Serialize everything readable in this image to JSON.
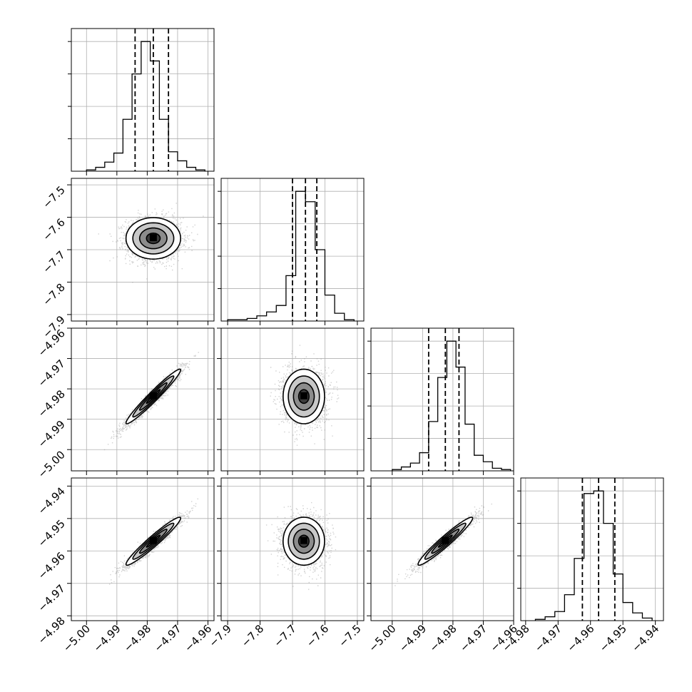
{
  "chart_data": {
    "type": "corner",
    "parameters": 4,
    "axes": {
      "p0": {
        "range": [
          -5.005,
          -4.958
        ],
        "ticks": [
          -5.0,
          -4.99,
          -4.98,
          -4.97,
          -4.96
        ],
        "tick_labels": [
          "−5.00",
          "−4.99",
          "−4.98",
          "−4.97",
          "−4.96"
        ]
      },
      "p1": {
        "range": [
          -7.92,
          -7.48
        ],
        "ticks": [
          -7.9,
          -7.8,
          -7.7,
          -7.6,
          -7.5
        ],
        "tick_labels": [
          "−7.9",
          "−7.8",
          "−7.7",
          "−7.6",
          "−7.5"
        ]
      },
      "p2": {
        "range": [
          -5.007,
          -4.96
        ],
        "ticks": [
          -5.0,
          -4.99,
          -4.98,
          -4.97,
          -4.96
        ],
        "tick_labels": [
          "−5.00",
          "−4.99",
          "−4.98",
          "−4.97",
          "−4.96"
        ]
      },
      "p3": {
        "range": [
          -4.9815,
          -4.9375
        ],
        "ticks": [
          -4.98,
          -4.97,
          -4.96,
          -4.95,
          -4.94
        ],
        "tick_labels": [
          "−4.98",
          "−4.97",
          "−4.96",
          "−4.95",
          "−4.94"
        ]
      }
    },
    "marginals": [
      {
        "param": 0,
        "bins": [
          -5.0,
          -4.997,
          -4.994,
          -4.991,
          -4.988,
          -4.985,
          -4.982,
          -4.979,
          -4.976,
          -4.973,
          -4.97,
          -4.967,
          -4.964,
          -4.961
        ],
        "counts": [
          1,
          3,
          7,
          14,
          40,
          75,
          100,
          85,
          40,
          15,
          8,
          3,
          1
        ],
        "quantiles": [
          -4.984,
          -4.978,
          -4.973
        ]
      },
      {
        "param": 1,
        "bins": [
          -7.9,
          -7.87,
          -7.84,
          -7.81,
          -7.78,
          -7.75,
          -7.72,
          -7.69,
          -7.66,
          -7.63,
          -7.6,
          -7.57,
          -7.54,
          -7.51
        ],
        "counts": [
          1,
          1,
          2,
          4,
          7,
          12,
          35,
          100,
          92,
          55,
          20,
          6,
          1
        ],
        "quantiles": [
          -7.7,
          -7.66,
          -7.625
        ]
      },
      {
        "param": 2,
        "bins": [
          -5.0,
          -4.997,
          -4.994,
          -4.991,
          -4.988,
          -4.985,
          -4.982,
          -4.979,
          -4.976,
          -4.973,
          -4.97,
          -4.967,
          -4.964,
          -4.961
        ],
        "counts": [
          1,
          3,
          6,
          14,
          38,
          72,
          100,
          80,
          36,
          12,
          7,
          2,
          1
        ],
        "quantiles": [
          -4.988,
          -4.9825,
          -4.978
        ]
      },
      {
        "param": 3,
        "bins": [
          -4.977,
          -4.974,
          -4.971,
          -4.968,
          -4.965,
          -4.962,
          -4.959,
          -4.956,
          -4.953,
          -4.95,
          -4.947,
          -4.944,
          -4.941
        ],
        "counts": [
          1,
          3,
          7,
          20,
          48,
          98,
          100,
          75,
          36,
          14,
          6,
          2
        ],
        "quantiles": [
          -4.9625,
          -4.9575,
          -4.9525
        ]
      }
    ],
    "joint": [
      {
        "x_param": 0,
        "y_param": 1,
        "center": [
          -4.978,
          -7.665
        ],
        "sigma": [
          0.0045,
          0.032
        ],
        "corr": 0.0
      },
      {
        "x_param": 0,
        "y_param": 2,
        "center": [
          -4.978,
          -4.9825
        ],
        "sigma": [
          0.0045,
          0.0045
        ],
        "corr": 0.97
      },
      {
        "x_param": 1,
        "y_param": 2,
        "center": [
          -7.665,
          -4.9825
        ],
        "sigma": [
          0.032,
          0.0045
        ],
        "corr": 0.0
      },
      {
        "x_param": 0,
        "y_param": 3,
        "center": [
          -4.978,
          -4.957
        ],
        "sigma": [
          0.0045,
          0.0037
        ],
        "corr": 0.96
      },
      {
        "x_param": 1,
        "y_param": 3,
        "center": [
          -7.665,
          -4.957
        ],
        "sigma": [
          0.032,
          0.0037
        ],
        "corr": 0.0
      },
      {
        "x_param": 2,
        "y_param": 3,
        "center": [
          -4.9825,
          -4.957
        ],
        "sigma": [
          0.0045,
          0.0037
        ],
        "corr": 0.96
      }
    ]
  }
}
